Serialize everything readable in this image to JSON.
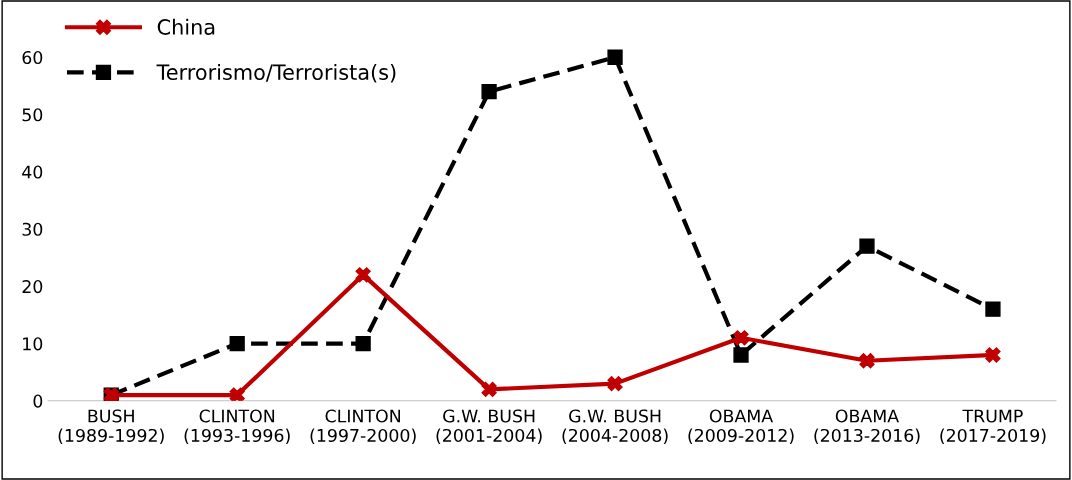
{
  "chart_data": {
    "type": "line",
    "categories": [
      "BUSH\n(1989-1992)",
      "CLINTON\n(1993-1996)",
      "CLINTON\n(1997-2000)",
      "G.W. BUSH\n(2001-2004)",
      "G.W. BUSH\n(2004-2008)",
      "OBAMA\n(2009-2012)",
      "OBAMA\n(2013-2016)",
      "TRUMP\n(2017-2019)"
    ],
    "series": [
      {
        "name": "China",
        "color": "#c00000",
        "marker": "cross",
        "line_style": "solid",
        "values": [
          1,
          1,
          22,
          2,
          3,
          11,
          7,
          8
        ]
      },
      {
        "name": "Terrorismo/Terrorista(s)",
        "color": "#000000",
        "marker": "square",
        "line_style": "dashed",
        "values": [
          1,
          10,
          10,
          54,
          60,
          8,
          27,
          16
        ]
      }
    ],
    "ylim": [
      0,
      70
    ],
    "yticks": [
      0,
      10,
      20,
      30,
      40,
      50,
      60
    ],
    "grid": false,
    "legend": "top left"
  }
}
